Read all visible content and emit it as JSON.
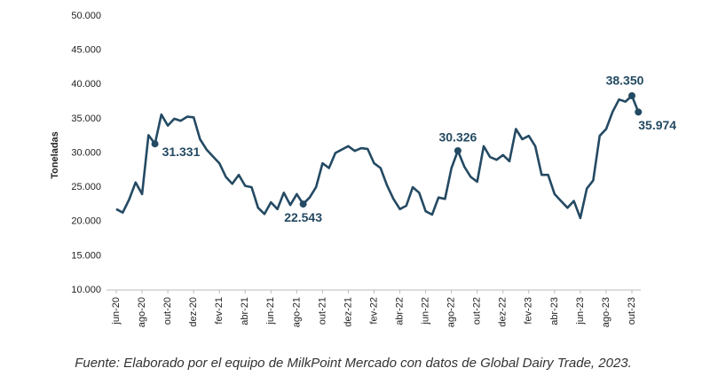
{
  "chart_data": {
    "type": "line",
    "y_label": "Toneladas",
    "source": "Fuente: Elaborado por el equipo de MilkPoint Mercado con datos de Global Dairy Trade, 2023.",
    "color": "#244a63",
    "categories": [
      "jun-20",
      null,
      null,
      null,
      "ago-20",
      null,
      null,
      null,
      "out-20",
      null,
      null,
      null,
      "dez-20",
      null,
      null,
      null,
      "fev-21",
      null,
      null,
      null,
      "abr-21",
      null,
      null,
      null,
      "jun-21",
      null,
      null,
      null,
      "ago-21",
      null,
      null,
      null,
      "out-21",
      null,
      null,
      null,
      "dez-21",
      null,
      null,
      null,
      "fev-22",
      null,
      null,
      null,
      "abr-22",
      null,
      null,
      null,
      "jun-22",
      null,
      null,
      null,
      "ago-22",
      null,
      null,
      null,
      "out-22",
      null,
      null,
      null,
      "dez-22",
      null,
      null,
      null,
      "fev-23",
      null,
      null,
      null,
      "abr-23",
      null,
      null,
      null,
      "jun-23",
      null,
      null,
      null,
      "ago-23",
      null,
      null,
      null,
      "out-23",
      null
    ],
    "values": [
      21800,
      21300,
      23200,
      25700,
      24000,
      32600,
      31331,
      35600,
      34000,
      35000,
      34700,
      35300,
      35200,
      32000,
      30500,
      29500,
      28500,
      26500,
      25500,
      26800,
      25200,
      25000,
      22000,
      21100,
      22800,
      21800,
      24200,
      22400,
      24000,
      22543,
      23500,
      25000,
      28500,
      27800,
      30000,
      30500,
      31000,
      30300,
      30700,
      30600,
      28500,
      27800,
      25300,
      23300,
      21800,
      22300,
      25000,
      24200,
      21500,
      21000,
      23500,
      23300,
      27800,
      30326,
      28000,
      26500,
      25800,
      31000,
      29400,
      29000,
      29700,
      28800,
      33500,
      32000,
      32500,
      31000,
      26800,
      26800,
      24000,
      23000,
      22000,
      23000,
      20500,
      24800,
      26000,
      32500,
      33500,
      36000,
      37800,
      37500,
      38350,
      35974
    ],
    "value_labels": [
      null,
      null,
      null,
      null,
      null,
      null,
      "31.331",
      null,
      null,
      null,
      null,
      null,
      null,
      null,
      null,
      null,
      null,
      null,
      null,
      null,
      null,
      null,
      null,
      null,
      null,
      null,
      null,
      null,
      null,
      "22.543",
      null,
      null,
      null,
      null,
      null,
      null,
      null,
      null,
      null,
      null,
      null,
      null,
      null,
      null,
      null,
      null,
      null,
      null,
      null,
      null,
      null,
      null,
      null,
      "30.326",
      null,
      null,
      null,
      null,
      null,
      null,
      null,
      null,
      null,
      null,
      null,
      null,
      null,
      null,
      null,
      null,
      null,
      null,
      null,
      null,
      null,
      null,
      null,
      null,
      null,
      null,
      "38.350",
      "35.974"
    ],
    "ylim": [
      10000,
      50000
    ],
    "yticks": [
      {
        "value": 10000,
        "label": "10.000"
      },
      {
        "value": 15000,
        "label": "15.000"
      },
      {
        "value": 20000,
        "label": "20.000"
      },
      {
        "value": 25000,
        "label": "25.000"
      },
      {
        "value": 30000,
        "label": "30.000"
      },
      {
        "value": 35000,
        "label": "35.000"
      },
      {
        "value": 40000,
        "label": "40.000"
      },
      {
        "value": 45000,
        "label": "45.000"
      },
      {
        "value": 50000,
        "label": "50.000"
      }
    ],
    "grid": false
  }
}
